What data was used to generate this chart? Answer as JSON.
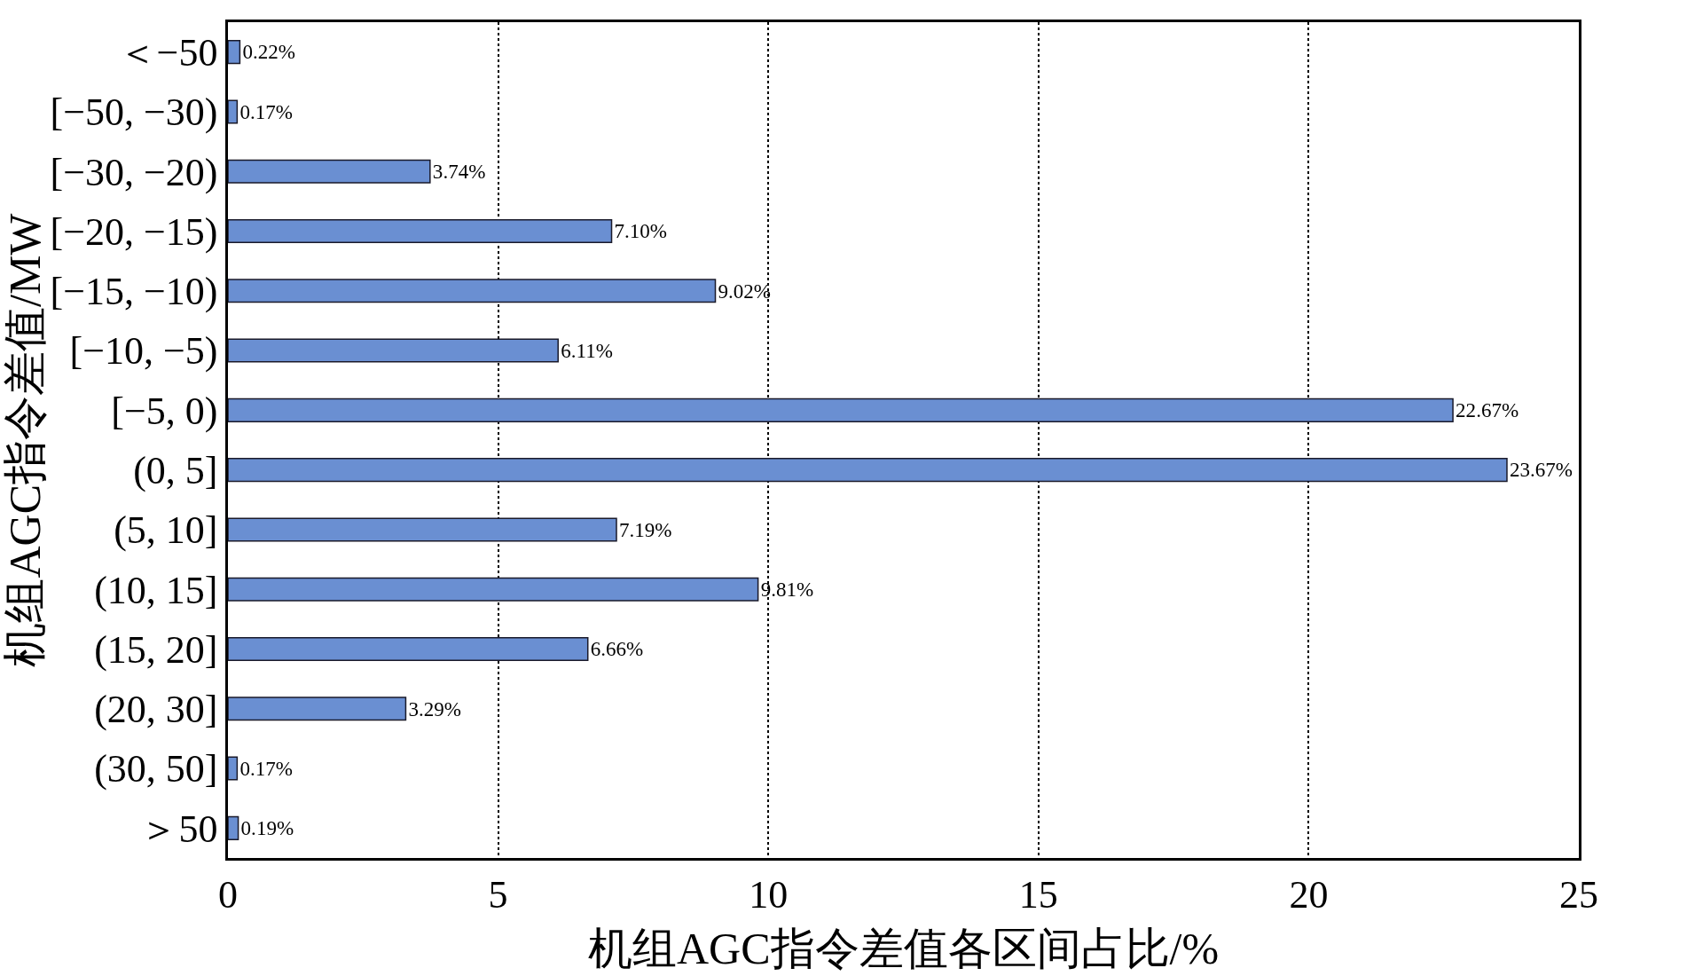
{
  "chart_data": {
    "type": "bar",
    "orientation": "horizontal",
    "xlabel": "机组AGC指令差值各区间占比/%",
    "ylabel": "机组AGC指令差值/MW",
    "categories": [
      "＜−50",
      "[−50, −30)",
      "[−30, −20)",
      "[−20, −15)",
      "[−15, −10)",
      "[−10, −5)",
      "[−5, 0)",
      "(0, 5]",
      "(5, 10]",
      "(10, 15]",
      "(15, 20]",
      "(20, 30]",
      "(30, 50]",
      "＞50"
    ],
    "values": [
      0.22,
      0.17,
      3.74,
      7.1,
      9.02,
      6.11,
      22.67,
      23.67,
      7.19,
      9.81,
      6.66,
      3.29,
      0.17,
      0.19
    ],
    "value_labels": [
      "0.22%",
      "0.17%",
      "3.74%",
      "7.10%",
      "9.02%",
      "6.11%",
      "22.67%",
      "23.67%",
      "7.19%",
      "9.81%",
      "6.66%",
      "3.29%",
      "0.17%",
      "0.19%"
    ],
    "color": "#6a8fd2",
    "xlim": [
      0,
      25
    ],
    "xticks": [
      0,
      5,
      10,
      15,
      20,
      25
    ],
    "grid": "x",
    "line_style": "dotted",
    "legend": false
  }
}
